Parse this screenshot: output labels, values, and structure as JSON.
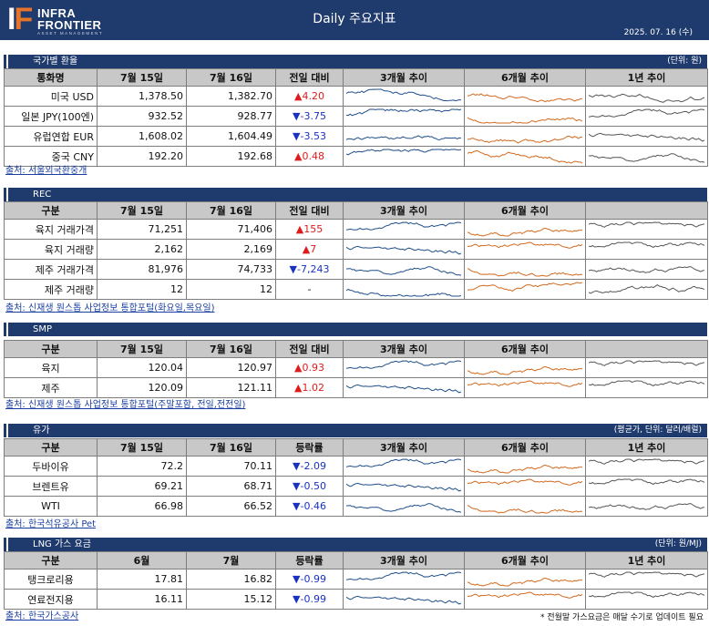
{
  "header": {
    "logo_if": "IF",
    "logo_line1": "INFRA",
    "logo_line2": "FRONTIER",
    "logo_line3": "ASSET MANAGEMENT",
    "title": "Daily 주요지표",
    "date": "2025. 07. 16 (수)"
  },
  "colors": {
    "header": "#1f3a6c",
    "up": "#e01b1b",
    "down": "#1a32c0",
    "spark_3m": "#1f4e8c",
    "spark_6m": "#d2691e",
    "spark_1y": "#555555"
  },
  "fx": {
    "title": "국가별 환율",
    "unit": "(단위: 원)",
    "headers": [
      "통화명",
      "7월 15일",
      "7월 16일",
      "전일 대비",
      "3개월 추이",
      "6개월 추이",
      "1년 추이"
    ],
    "rows": [
      {
        "name": "미국 USD",
        "prev": "1,378.50",
        "curr": "1,382.70",
        "dir": "up",
        "sym": "▲",
        "chg": "4.20"
      },
      {
        "name": "일본 JPY(100엔)",
        "prev": "932.52",
        "curr": "928.77",
        "dir": "down",
        "sym": "▼",
        "chg": "-3.75"
      },
      {
        "name": "유럽연합 EUR",
        "prev": "1,608.02",
        "curr": "1,604.49",
        "dir": "down",
        "sym": "▼",
        "chg": "-3.53"
      },
      {
        "name": "중국 CNY",
        "prev": "192.20",
        "curr": "192.68",
        "dir": "up",
        "sym": "▲",
        "chg": "0.48"
      }
    ],
    "source": "출처: 서울외국환중개"
  },
  "rec": {
    "title": "REC",
    "headers": [
      "구분",
      "7월 15일",
      "7월 16일",
      "전일 대비",
      "3개월 추이",
      "6개월 추이",
      ""
    ],
    "rows": [
      {
        "name": "육지 거래가격",
        "prev": "71,251",
        "curr": "71,406",
        "dir": "up",
        "sym": "▲",
        "chg": "155"
      },
      {
        "name": "육지 거래량",
        "prev": "2,162",
        "curr": "2,169",
        "dir": "up",
        "sym": "▲",
        "chg": "7"
      },
      {
        "name": "제주 거래가격",
        "prev": "81,976",
        "curr": "74,733",
        "dir": "down",
        "sym": "▼",
        "chg": "-7,243"
      },
      {
        "name": "제주 거래량",
        "prev": "12",
        "curr": "12",
        "dir": "flat",
        "sym": "",
        "chg": "-"
      }
    ],
    "source": "출처: 신재생 원스톱 사업정보 통합포털(화요일,목요일)"
  },
  "smp": {
    "title": "SMP",
    "headers": [
      "구분",
      "7월 15일",
      "7월 16일",
      "전일 대비",
      "3개월 추이",
      "6개월 추이",
      ""
    ],
    "rows": [
      {
        "name": "육지",
        "prev": "120.04",
        "curr": "120.97",
        "dir": "up",
        "sym": "▲",
        "chg": "0.93"
      },
      {
        "name": "제주",
        "prev": "120.09",
        "curr": "121.11",
        "dir": "up",
        "sym": "▲",
        "chg": "1.02"
      }
    ],
    "source": "출처: 신재생 원스톱 사업정보 통합포털(주말포함, 전일,전전일)"
  },
  "oil": {
    "title": "유가",
    "unit": "(평균가, 단위: 달러/배럴)",
    "headers": [
      "구분",
      "7월 15일",
      "7월 16일",
      "등락률",
      "3개월 추이",
      "6개월 추이",
      "1년 추이"
    ],
    "rows": [
      {
        "name": "두바이유",
        "prev": "72.2",
        "curr": "70.11",
        "dir": "down",
        "sym": "▼",
        "chg": "-2.09"
      },
      {
        "name": "브렌트유",
        "prev": "69.21",
        "curr": "68.71",
        "dir": "down",
        "sym": "▼",
        "chg": "-0.50"
      },
      {
        "name": "WTI",
        "prev": "66.98",
        "curr": "66.52",
        "dir": "down",
        "sym": "▼",
        "chg": "-0.46"
      }
    ],
    "source": "출처: 한국석유공사 Pet"
  },
  "lng": {
    "title": "LNG 가스 요금",
    "unit": "(단위: 원/MJ)",
    "headers": [
      "구분",
      "6월",
      "7월",
      "등락률",
      "3개월 추이",
      "6개월 추이",
      "1년 추이"
    ],
    "rows": [
      {
        "name": "탱크로리용",
        "prev": "17.81",
        "curr": "16.82",
        "dir": "down",
        "sym": "▼",
        "chg": "-0.99"
      },
      {
        "name": "연료전지용",
        "prev": "16.11",
        "curr": "15.12",
        "dir": "down",
        "sym": "▼",
        "chg": "-0.99"
      }
    ],
    "source": "출처: 한국가스공사",
    "note": "* 전월말 가스요금은 매달 수기로 업데이트 필요"
  }
}
